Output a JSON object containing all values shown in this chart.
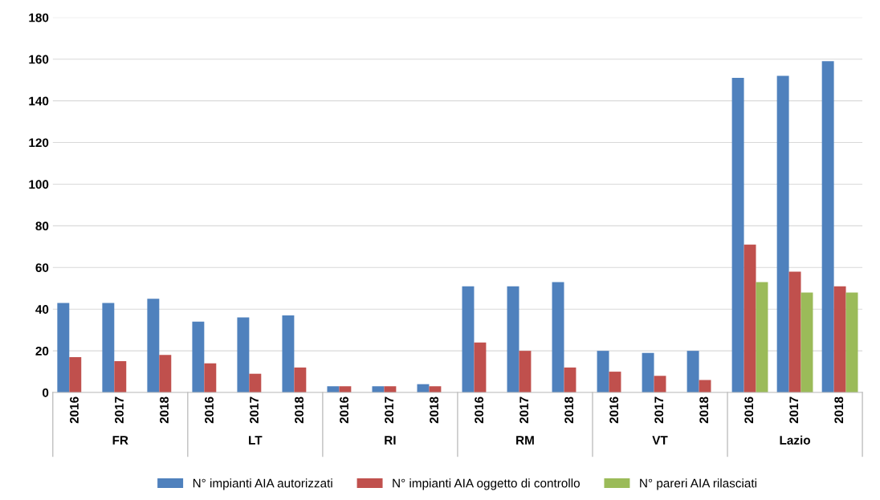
{
  "chart_data": {
    "type": "bar",
    "categories": [
      "2016",
      "2017",
      "2018",
      "2016",
      "2017",
      "2018",
      "2016",
      "2017",
      "2018",
      "2016",
      "2017",
      "2018",
      "2016",
      "2017",
      "2018",
      "2016",
      "2017",
      "2018"
    ],
    "annotations": [
      "FR",
      "LT",
      "RI",
      "RM",
      "VT",
      "Lazio"
    ],
    "series": [
      {
        "name": "N° impianti AIA autorizzati",
        "color": "#4f81bd",
        "values": [
          43,
          43,
          45,
          34,
          36,
          37,
          3,
          3,
          4,
          51,
          51,
          53,
          20,
          19,
          20,
          151,
          152,
          159
        ]
      },
      {
        "name": "N° impianti AIA oggetto di controllo",
        "color": "#c0504d",
        "values": [
          17,
          15,
          18,
          14,
          9,
          12,
          3,
          3,
          3,
          24,
          20,
          12,
          10,
          8,
          6,
          71,
          58,
          51
        ]
      },
      {
        "name": "N° pareri AIA rilasciati",
        "color": "#9bbb59",
        "values": [
          null,
          null,
          null,
          null,
          null,
          null,
          null,
          null,
          null,
          null,
          null,
          null,
          null,
          null,
          null,
          53,
          48,
          48
        ]
      }
    ],
    "ylim": [
      0,
      180
    ],
    "yticks": [
      0,
      20,
      40,
      60,
      80,
      100,
      120,
      140,
      160,
      180
    ],
    "grid": "y",
    "legend": "bottom"
  }
}
